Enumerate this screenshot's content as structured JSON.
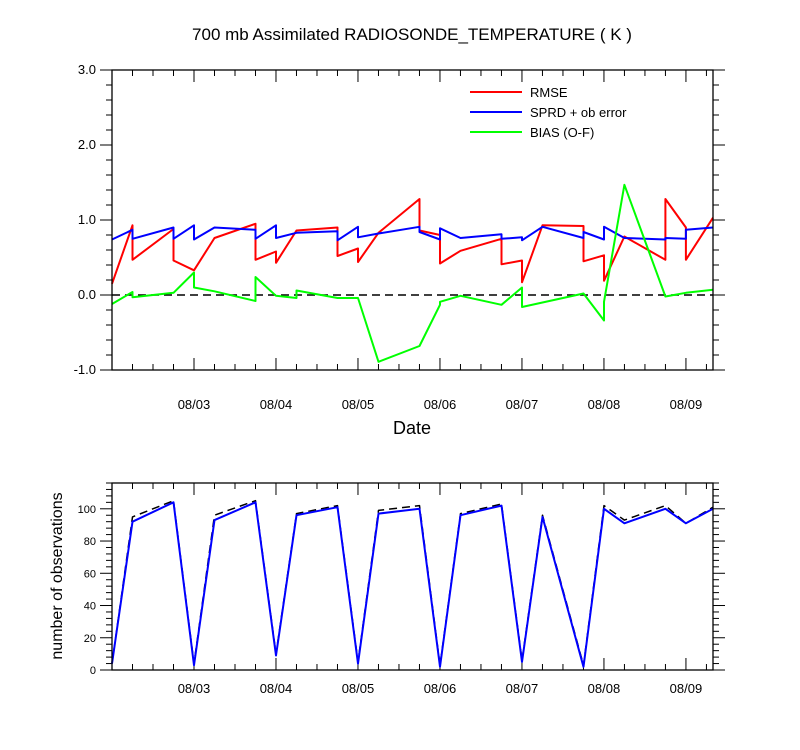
{
  "chart_data": [
    {
      "type": "line",
      "title": "700 mb Assimilated RADIOSONDE_TEMPERATURE ( K )",
      "xlabel": "Date",
      "ylabel": "",
      "x_tick_labels": [
        "08/03",
        "08/04",
        "08/05",
        "08/06",
        "08/07",
        "08/08",
        "08/09"
      ],
      "x_tick_positions_days": [
        1,
        2,
        3,
        4,
        5,
        6,
        7
      ],
      "xlim_days": [
        0.0,
        7.33
      ],
      "ylim": [
        -1.0,
        3.0
      ],
      "y_ticks": [
        -1.0,
        0.0,
        1.0,
        2.0,
        3.0
      ],
      "y_tick_labels": [
        "-1.0",
        "0.0",
        "1.0",
        "2.0",
        "3.0"
      ],
      "legend_position": "top-right",
      "reference_line": {
        "y": 0.0,
        "style": "dashed",
        "color": "#000000"
      },
      "series": [
        {
          "name": "RMSE",
          "color": "#ff0000",
          "x": [
            0.0,
            0.25,
            0.25,
            0.75,
            0.75,
            1.0,
            1.0,
            1.25,
            1.75,
            1.75,
            2.0,
            2.0,
            2.25,
            2.75,
            2.75,
            3.0,
            3.0,
            3.25,
            3.75,
            3.75,
            4.0,
            4.0,
            4.25,
            4.75,
            4.75,
            5.0,
            5.0,
            5.25,
            5.75,
            5.75,
            6.0,
            6.0,
            6.25,
            6.75,
            6.75,
            7.0,
            7.0,
            7.33
          ],
          "y": [
            0.15,
            0.93,
            0.47,
            0.88,
            0.46,
            0.33,
            0.33,
            0.76,
            0.95,
            0.47,
            0.58,
            0.43,
            0.86,
            0.9,
            0.52,
            0.62,
            0.44,
            0.83,
            1.28,
            0.86,
            0.8,
            0.42,
            0.59,
            0.75,
            0.41,
            0.46,
            0.17,
            0.93,
            0.92,
            0.45,
            0.53,
            0.19,
            0.78,
            0.47,
            1.28,
            0.9,
            0.47,
            1.03
          ]
        },
        {
          "name": "SPRD + ob error",
          "color": "#0000ff",
          "x": [
            0.0,
            0.25,
            0.25,
            0.75,
            0.75,
            1.0,
            1.0,
            1.25,
            1.75,
            1.75,
            2.0,
            2.0,
            2.25,
            2.75,
            2.75,
            3.0,
            3.0,
            3.25,
            3.75,
            3.75,
            4.0,
            4.0,
            4.25,
            4.75,
            4.75,
            5.0,
            5.0,
            5.25,
            5.75,
            5.75,
            6.0,
            6.0,
            6.25,
            6.75,
            6.75,
            7.0,
            7.0,
            7.33
          ],
          "y": [
            0.74,
            0.87,
            0.75,
            0.9,
            0.75,
            0.93,
            0.74,
            0.9,
            0.87,
            0.75,
            0.93,
            0.76,
            0.83,
            0.85,
            0.73,
            0.91,
            0.77,
            0.82,
            0.91,
            0.84,
            0.74,
            0.89,
            0.76,
            0.81,
            0.75,
            0.77,
            0.73,
            0.91,
            0.76,
            0.84,
            0.74,
            0.91,
            0.76,
            0.74,
            0.76,
            0.75,
            0.87,
            0.9
          ]
        },
        {
          "name": "BIAS (O-F)",
          "color": "#00ff00",
          "x": [
            0.0,
            0.25,
            0.25,
            0.75,
            1.0,
            1.0,
            1.25,
            1.75,
            1.75,
            2.0,
            2.25,
            2.25,
            2.75,
            3.0,
            3.0,
            3.25,
            3.75,
            4.0,
            4.0,
            4.25,
            4.75,
            5.0,
            5.0,
            5.25,
            5.75,
            6.0,
            6.0,
            6.25,
            6.75,
            7.0,
            7.33
          ],
          "y": [
            -0.12,
            0.04,
            -0.03,
            0.03,
            0.3,
            0.1,
            0.05,
            -0.08,
            0.24,
            -0.01,
            -0.04,
            0.06,
            -0.04,
            -0.04,
            -0.04,
            -0.89,
            -0.68,
            -0.13,
            -0.09,
            -0.01,
            -0.13,
            0.1,
            -0.16,
            -0.1,
            0.02,
            -0.34,
            -0.09,
            1.47,
            -0.02,
            0.03,
            0.07
          ]
        }
      ]
    },
    {
      "type": "line",
      "title": "",
      "xlabel": "",
      "ylabel": "number of observations",
      "x_tick_labels": [
        "08/03",
        "08/04",
        "08/05",
        "08/06",
        "08/07",
        "08/08",
        "08/09"
      ],
      "x_tick_positions_days": [
        1,
        2,
        3,
        4,
        5,
        6,
        7
      ],
      "xlim_days": [
        0.0,
        7.33
      ],
      "ylim": [
        0,
        116
      ],
      "y_ticks": [
        0,
        20,
        40,
        60,
        80,
        100
      ],
      "y_tick_labels": [
        "0",
        "20",
        "40",
        "60",
        "80",
        "100"
      ],
      "series": [
        {
          "name": "",
          "color": "#000000",
          "dashed": true,
          "x": [
            0.0,
            0.25,
            0.75,
            1.0,
            1.25,
            1.75,
            2.0,
            2.25,
            2.75,
            3.0,
            3.25,
            3.75,
            4.0,
            4.25,
            4.75,
            5.0,
            5.25,
            5.75,
            6.0,
            6.25,
            6.75,
            7.0,
            7.33
          ],
          "y": [
            4,
            95,
            105,
            4,
            96,
            105,
            10,
            97,
            102,
            5,
            99,
            102,
            3,
            97,
            103,
            6,
            96,
            3,
            102,
            93,
            102,
            91,
            101
          ]
        },
        {
          "name": "",
          "color": "#0000ff",
          "dashed": false,
          "x": [
            0.0,
            0.25,
            0.75,
            1.0,
            1.25,
            1.75,
            2.0,
            2.25,
            2.75,
            3.0,
            3.25,
            3.75,
            4.0,
            4.25,
            4.75,
            5.0,
            5.25,
            5.75,
            6.0,
            6.25,
            6.75,
            7.0,
            7.33
          ],
          "y": [
            4,
            92,
            104,
            3,
            93,
            104,
            9,
            96,
            101,
            4,
            97,
            100,
            2,
            96,
            102,
            5,
            95,
            2,
            100,
            91,
            100,
            91,
            100
          ]
        }
      ]
    }
  ]
}
